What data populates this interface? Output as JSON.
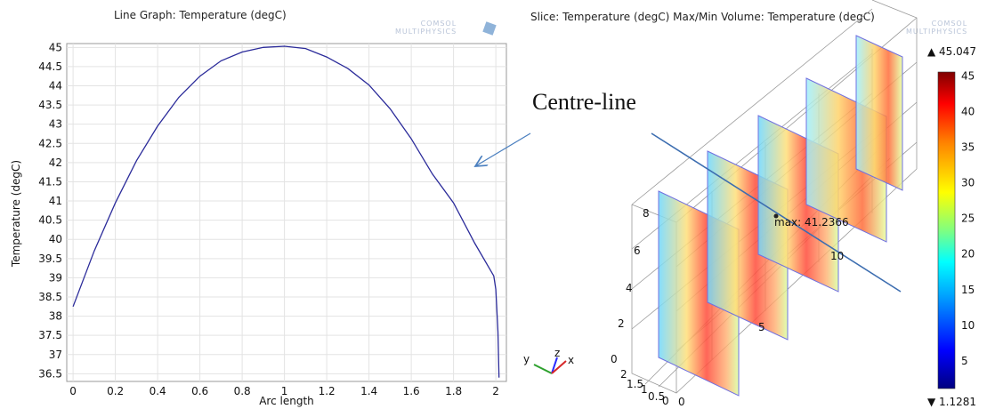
{
  "left_panel": {
    "title": "Line Graph: Temperature (degC)",
    "logo_text": [
      "COMSOL",
      "MULTIPHYSICS"
    ]
  },
  "right_panel": {
    "title": "Slice: Temperature (degC)  Max/Min Volume: Temperature (degC)",
    "logo_text": [
      "COMSOL",
      "MULTIPHYSICS"
    ],
    "annotation_max_label": "max: 41.2366",
    "axis_triad": {
      "y": "y",
      "z": "z",
      "x": "x"
    },
    "y_axis_ticks": [
      "0",
      "2",
      "4",
      "6",
      "8"
    ],
    "x_axis_ticks": [
      "5",
      "10"
    ],
    "z_axis_ticks": [
      "2",
      "1.5",
      "1",
      "0.5",
      "0",
      "0"
    ],
    "colorbar": {
      "max_label": "▲ 45.047",
      "min_label": "▼ 1.1281",
      "ticks": [
        "45",
        "40",
        "35",
        "30",
        "25",
        "20",
        "15",
        "10",
        "5"
      ],
      "colors": [
        "#00007f",
        "#0000ff",
        "#00a0ff",
        "#00ffff",
        "#7fff7f",
        "#ffff00",
        "#ff8000",
        "#ff0000",
        "#7f0000"
      ]
    }
  },
  "callout": {
    "label": "Centre-line",
    "arrow_color": "#4a7fbf"
  },
  "chart_data": {
    "type": "line",
    "title": "Line Graph: Temperature (degC)",
    "xlabel": "Arc length",
    "ylabel": "Temperature (degC)",
    "xlim": [
      -0.03,
      2.05
    ],
    "ylim": [
      36.3,
      45.1
    ],
    "x_ticks": [
      "0",
      "0.2",
      "0.4",
      "0.6",
      "0.8",
      "1",
      "1.2",
      "1.4",
      "1.6",
      "1.8",
      "2"
    ],
    "y_ticks": [
      "36.5",
      "37",
      "37.5",
      "38",
      "38.5",
      "39",
      "39.5",
      "40",
      "40.5",
      "41",
      "41.5",
      "42",
      "42.5",
      "43",
      "43.5",
      "44",
      "44.5",
      "45"
    ],
    "grid": true,
    "series": [
      {
        "color": "#2b2b9a",
        "x": [
          0,
          0.1,
          0.2,
          0.3,
          0.4,
          0.5,
          0.6,
          0.7,
          0.8,
          0.9,
          1.0,
          1.1,
          1.2,
          1.3,
          1.4,
          1.5,
          1.6,
          1.7,
          1.8,
          1.9,
          1.99,
          2.0,
          2.01,
          2.015
        ],
        "y": [
          38.25,
          39.7,
          40.95,
          42.05,
          42.95,
          43.7,
          44.25,
          44.65,
          44.88,
          45.0,
          45.03,
          44.97,
          44.75,
          44.45,
          44.02,
          43.4,
          42.62,
          41.7,
          40.95,
          39.9,
          39.05,
          38.7,
          37.6,
          36.4
        ]
      }
    ]
  }
}
